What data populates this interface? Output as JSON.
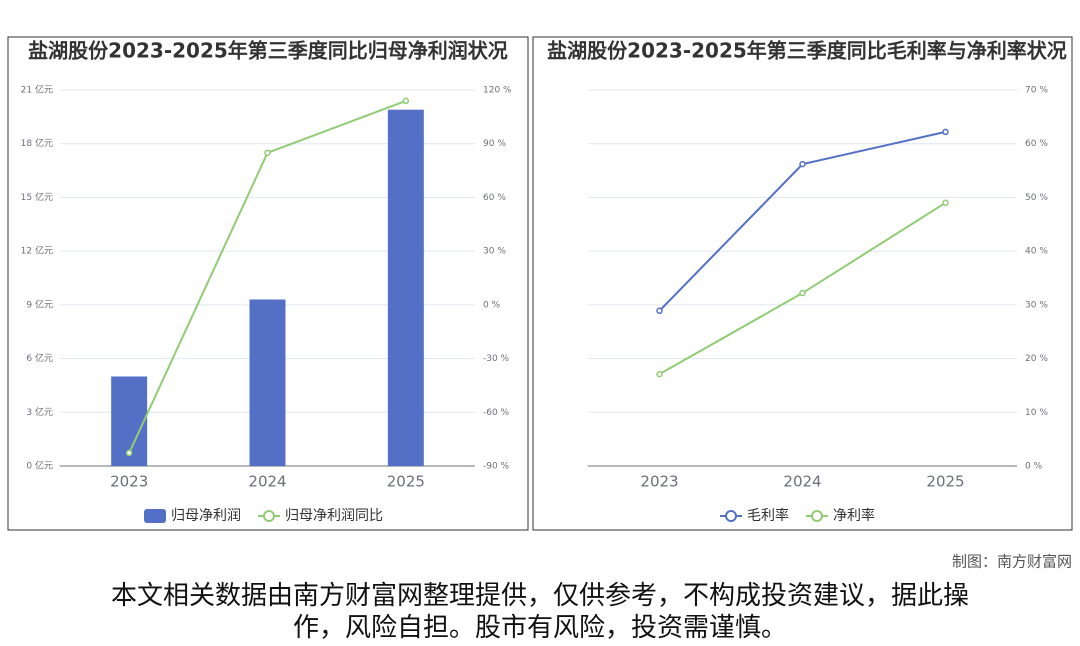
{
  "chart_data": [
    {
      "type": "combo",
      "title": "盐湖股份2023-2025年第三季度同比归母净利润状况",
      "categories": [
        "2023",
        "2024",
        "2025"
      ],
      "series": [
        {
          "name": "归母净利润",
          "type": "bar",
          "color": "#5470c6",
          "values": [
            5.0,
            9.3,
            19.9
          ]
        },
        {
          "name": "归母净利润同比",
          "type": "line",
          "axis": "y2",
          "color": "#91cc75",
          "values": [
            -82.7,
            84.9,
            113.9
          ]
        }
      ],
      "ylim": [
        0,
        21
      ],
      "yticks": [
        {
          "value": 0,
          "label": "0 亿元"
        },
        {
          "value": 3,
          "label": "3 亿元"
        },
        {
          "value": 6,
          "label": "6 亿元"
        },
        {
          "value": 9,
          "label": "9 亿元"
        },
        {
          "value": 12,
          "label": "12 亿元"
        },
        {
          "value": 15,
          "label": "15 亿元"
        },
        {
          "value": 18,
          "label": "18 亿元"
        },
        {
          "value": 21,
          "label": "21 亿元"
        }
      ],
      "y2lim": [
        -90,
        120
      ],
      "y2ticks": [
        {
          "value": -90,
          "label": "-90 %"
        },
        {
          "value": -60,
          "label": "-60 %"
        },
        {
          "value": -30,
          "label": "-30 %"
        },
        {
          "value": 0,
          "label": "0 %"
        },
        {
          "value": 30,
          "label": "30 %"
        },
        {
          "value": 60,
          "label": "60 %"
        },
        {
          "value": 90,
          "label": "90 %"
        },
        {
          "value": 120,
          "label": "120 %"
        }
      ],
      "grid": true
    },
    {
      "type": "line",
      "title": "盐湖股份2023-2025年第三季度同比毛利率与净利率状况",
      "categories": [
        "2023",
        "2024",
        "2025"
      ],
      "series": [
        {
          "name": "毛利率",
          "color": "#5470c6",
          "values": [
            28.9,
            56.2,
            62.2
          ]
        },
        {
          "name": "净利率",
          "color": "#91cc75",
          "values": [
            17.1,
            32.2,
            49.0
          ]
        }
      ],
      "ylim": [
        0,
        70
      ],
      "yticks": [
        {
          "value": 0,
          "label": "0 %"
        },
        {
          "value": 10,
          "label": "10 %"
        },
        {
          "value": 20,
          "label": "20 %"
        },
        {
          "value": 30,
          "label": "30 %"
        },
        {
          "value": 40,
          "label": "40 %"
        },
        {
          "value": 50,
          "label": "50 %"
        },
        {
          "value": 60,
          "label": "60 %"
        },
        {
          "value": 70,
          "label": "70 %"
        }
      ],
      "grid": true
    }
  ],
  "credit": "制图：南方财富网",
  "disclaimer": "本文相关数据由南方财富网整理提供，仅供参考，不构成投资建议，据此操作，风险自担。股市有风险，投资需谨慎。"
}
